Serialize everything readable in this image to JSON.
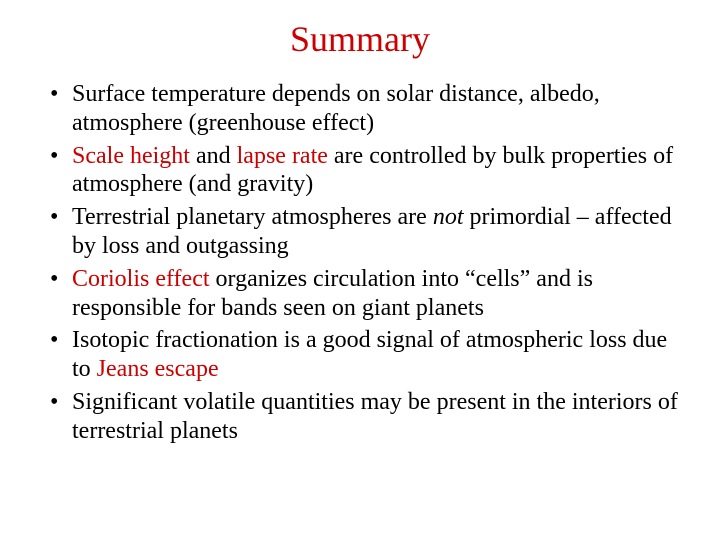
{
  "title_color": "#cc0000",
  "accent_color": "#cc0000",
  "text_color": "#000000",
  "background_color": "#ffffff",
  "font_family": "Times New Roman",
  "title_fontsize": 36,
  "body_fontsize": 24,
  "title": "Summary",
  "bullets": [
    {
      "runs": [
        {
          "text": "Surface temperature depends on solar distance, albedo, atmosphere (greenhouse effect)"
        }
      ]
    },
    {
      "runs": [
        {
          "text": "Scale height",
          "style": "red"
        },
        {
          "text": " and "
        },
        {
          "text": "lapse rate",
          "style": "red"
        },
        {
          "text": " are controlled by bulk properties of atmosphere (and gravity)"
        }
      ]
    },
    {
      "runs": [
        {
          "text": "Terrestrial planetary atmospheres are "
        },
        {
          "text": "not",
          "style": "italic"
        },
        {
          "text": " primordial – affected by loss and outgassing"
        }
      ]
    },
    {
      "runs": [
        {
          "text": "Coriolis effect",
          "style": "red"
        },
        {
          "text": " organizes circulation into “cells” and is responsible for bands seen on giant planets"
        }
      ]
    },
    {
      "runs": [
        {
          "text": "Isotopic fractionation is a good signal of atmospheric loss due to "
        },
        {
          "text": "Jeans escape",
          "style": "red"
        }
      ]
    },
    {
      "runs": [
        {
          "text": "Significant volatile quantities may be present in the interiors of terrestrial planets"
        }
      ]
    }
  ]
}
